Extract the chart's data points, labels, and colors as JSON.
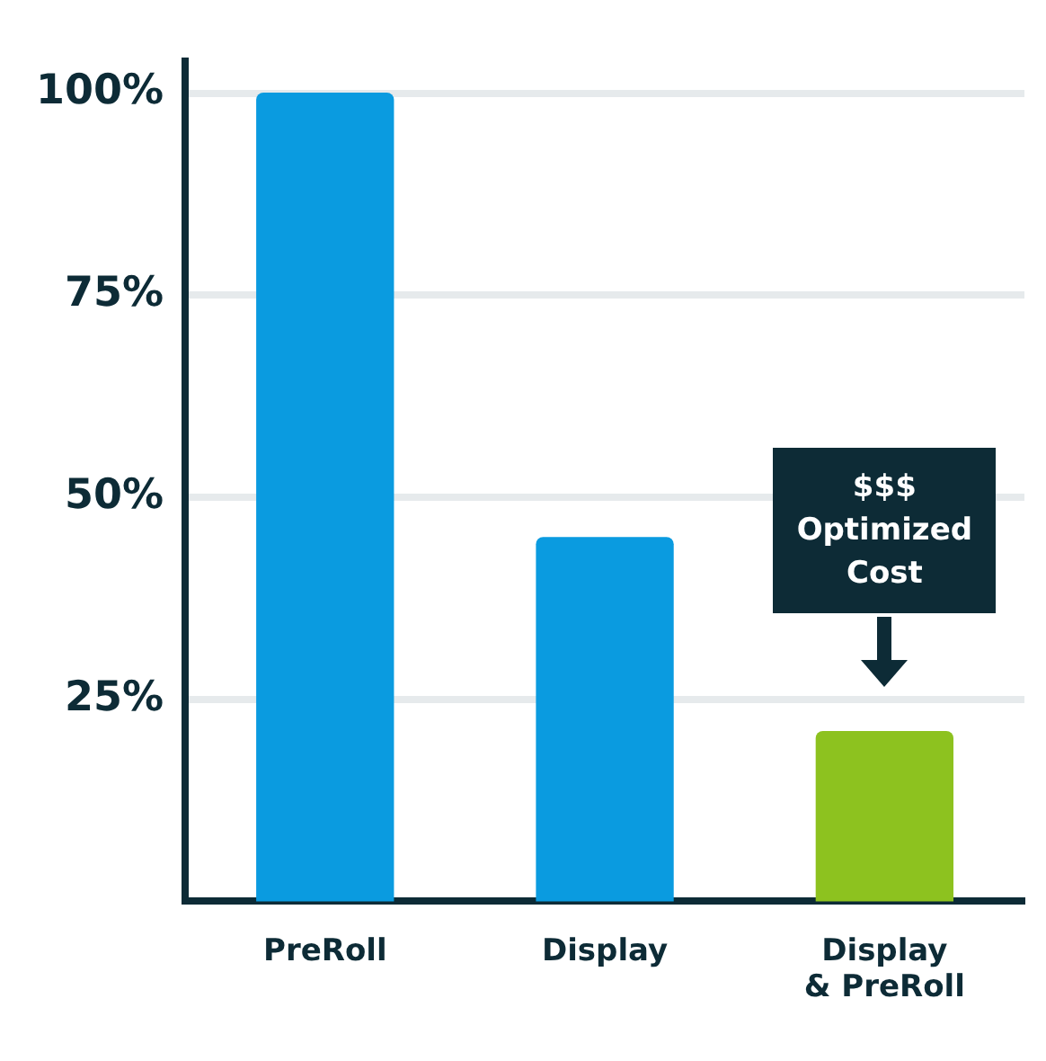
{
  "chart_data": {
    "type": "bar",
    "categories": [
      "PreRoll",
      "Display",
      "Display & PreRoll"
    ],
    "values": [
      100,
      45,
      21
    ],
    "colors": [
      "#0a9be0",
      "#0a9be0",
      "#8dc21f"
    ],
    "ylim": [
      0,
      104
    ],
    "yticks": [
      {
        "value": 25,
        "label": "25%"
      },
      {
        "value": 50,
        "label": "50%"
      },
      {
        "value": 75,
        "label": "75%"
      },
      {
        "value": 100,
        "label": "100%"
      }
    ],
    "grid": "y",
    "legend": false,
    "annotations": [
      "$$$ Optimized Cost"
    ]
  }
}
